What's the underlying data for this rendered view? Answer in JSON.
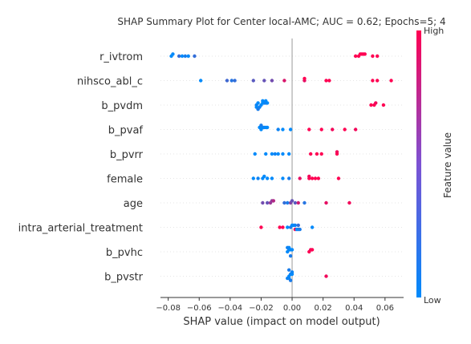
{
  "chart_data": {
    "type": "scatter",
    "title": "SHAP Summary Plot for Center local-AMC; AUC = 0.62; Epochs=5; 4",
    "xlabel": "SHAP value (impact on model output)",
    "xlim": [
      -0.085,
      0.072
    ],
    "xticks": [
      -0.08,
      -0.06,
      -0.04,
      -0.02,
      0.0,
      0.02,
      0.04,
      0.06
    ],
    "xtick_labels": [
      "−0.08",
      "−0.06",
      "−0.04",
      "−0.02",
      "0.00",
      "0.02",
      "0.04",
      "0.06"
    ],
    "colorbar": {
      "label": "Feature value",
      "high": "High",
      "low": "Low",
      "low_color": "#008afb",
      "high_color": "#ff0052"
    },
    "grid": false,
    "features": [
      {
        "name": "r_ivtrom",
        "points": [
          [
            -0.078,
            0
          ],
          [
            -0.077,
            0
          ],
          [
            -0.073,
            0.2
          ],
          [
            -0.071,
            0
          ],
          [
            -0.069,
            0.1
          ],
          [
            -0.067,
            0
          ],
          [
            -0.063,
            0.2
          ],
          [
            0.041,
            1
          ],
          [
            0.043,
            1
          ],
          [
            0.044,
            1
          ],
          [
            0.045,
            1
          ],
          [
            0.046,
            1
          ],
          [
            0.047,
            1
          ],
          [
            0.052,
            1
          ],
          [
            0.055,
            1
          ]
        ]
      },
      {
        "name": "nihsco_abl_c",
        "points": [
          [
            -0.059,
            0
          ],
          [
            -0.042,
            0.25
          ],
          [
            -0.039,
            0.15
          ],
          [
            -0.037,
            0.2
          ],
          [
            -0.025,
            0.35
          ],
          [
            -0.018,
            0.4
          ],
          [
            -0.013,
            0.45
          ],
          [
            -0.005,
            0.85
          ],
          [
            0.008,
            0.9
          ],
          [
            0.008,
            1
          ],
          [
            0.022,
            1
          ],
          [
            0.024,
            1
          ],
          [
            0.052,
            1
          ],
          [
            0.055,
            1
          ],
          [
            0.064,
            1
          ]
        ]
      },
      {
        "name": "b_pvdm",
        "points": [
          [
            -0.023,
            0.05
          ],
          [
            -0.022,
            0
          ],
          [
            -0.02,
            0
          ],
          [
            -0.019,
            0
          ],
          [
            -0.018,
            0
          ],
          [
            -0.017,
            0.1
          ],
          [
            -0.016,
            0
          ],
          [
            -0.023,
            0
          ],
          [
            -0.019,
            0
          ],
          [
            -0.021,
            0.05
          ],
          [
            -0.017,
            0
          ],
          [
            -0.022,
            0.1
          ],
          [
            0.051,
            1
          ],
          [
            0.053,
            1
          ],
          [
            0.054,
            0.95
          ],
          [
            0.059,
            1
          ]
        ]
      },
      {
        "name": "b_pvaf",
        "points": [
          [
            -0.02,
            0
          ],
          [
            -0.019,
            0
          ],
          [
            -0.018,
            0.05
          ],
          [
            -0.017,
            0
          ],
          [
            -0.016,
            0
          ],
          [
            -0.021,
            0
          ],
          [
            -0.02,
            0.1
          ],
          [
            -0.009,
            0.05
          ],
          [
            -0.006,
            0
          ],
          [
            -0.001,
            0
          ],
          [
            0.011,
            1
          ],
          [
            0.019,
            1
          ],
          [
            0.026,
            0.95
          ],
          [
            0.034,
            1
          ],
          [
            0.041,
            0.95
          ]
        ]
      },
      {
        "name": "b_pvrr",
        "points": [
          [
            -0.024,
            0
          ],
          [
            -0.017,
            0
          ],
          [
            -0.013,
            0
          ],
          [
            -0.011,
            0.05
          ],
          [
            -0.009,
            0
          ],
          [
            -0.006,
            0
          ],
          [
            -0.002,
            0
          ],
          [
            0.012,
            1
          ],
          [
            0.016,
            1
          ],
          [
            0.019,
            1
          ],
          [
            0.029,
            1
          ],
          [
            0.029,
            0.95
          ]
        ]
      },
      {
        "name": "female",
        "points": [
          [
            -0.025,
            0
          ],
          [
            -0.022,
            0.05
          ],
          [
            -0.019,
            0
          ],
          [
            -0.018,
            0
          ],
          [
            -0.016,
            0
          ],
          [
            -0.013,
            0
          ],
          [
            -0.006,
            0
          ],
          [
            -0.002,
            0.1
          ],
          [
            0.005,
            0.9
          ],
          [
            0.011,
            1
          ],
          [
            0.011,
            0.95
          ],
          [
            0.013,
            1
          ],
          [
            0.015,
            1
          ],
          [
            0.017,
            1
          ],
          [
            0.03,
            1
          ]
        ]
      },
      {
        "name": "age",
        "points": [
          [
            -0.019,
            0.45
          ],
          [
            -0.016,
            0.4
          ],
          [
            -0.014,
            0.6
          ],
          [
            -0.013,
            0.55
          ],
          [
            -0.012,
            0.7
          ],
          [
            -0.005,
            0.2
          ],
          [
            -0.003,
            0.1
          ],
          [
            -0.001,
            0.5
          ],
          [
            0.0,
            0.4
          ],
          [
            0.002,
            0.35
          ],
          [
            0.004,
            0.8
          ],
          [
            0.008,
            0.15
          ],
          [
            0.022,
            0.9
          ],
          [
            0.037,
            0.95
          ]
        ]
      },
      {
        "name": "intra_arterial_treatment",
        "points": [
          [
            -0.02,
            1
          ],
          [
            -0.008,
            1
          ],
          [
            -0.006,
            1
          ],
          [
            -0.003,
            0
          ],
          [
            -0.001,
            0.1
          ],
          [
            0.0,
            0
          ],
          [
            0.001,
            0
          ],
          [
            0.002,
            0.05
          ],
          [
            0.002,
            1
          ],
          [
            0.003,
            0
          ],
          [
            0.004,
            0.2
          ],
          [
            0.004,
            0.05
          ],
          [
            0.005,
            0.1
          ],
          [
            0.013,
            0
          ]
        ]
      },
      {
        "name": "b_pvhc",
        "points": [
          [
            -0.003,
            0
          ],
          [
            -0.002,
            0.05
          ],
          [
            -0.001,
            0
          ],
          [
            0.0,
            0
          ],
          [
            -0.002,
            0
          ],
          [
            -0.001,
            0.1
          ],
          [
            -0.003,
            0.05
          ],
          [
            0.011,
            1
          ],
          [
            0.012,
            0.95
          ],
          [
            0.013,
            1
          ]
        ]
      },
      {
        "name": "b_pvstr",
        "points": [
          [
            -0.002,
            0
          ],
          [
            -0.001,
            0.05
          ],
          [
            0.0,
            0
          ],
          [
            -0.002,
            0
          ],
          [
            -0.001,
            0.1
          ],
          [
            -0.003,
            0.05
          ],
          [
            0.0,
            0.05
          ],
          [
            -0.002,
            0.1
          ],
          [
            0.022,
            0.95
          ]
        ]
      }
    ]
  }
}
